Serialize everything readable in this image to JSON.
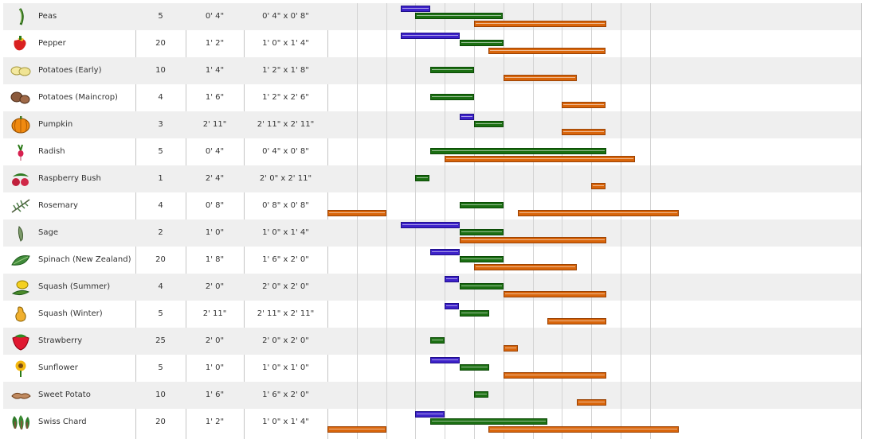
{
  "plants": [
    {
      "name": "Peas",
      "count": "5",
      "spacing": "0' 4\"",
      "row_spacing": "0' 4\" x 0' 8\"",
      "icon": "peas-icon",
      "sow": [
        [
          2.5,
          3.5
        ]
      ],
      "plant": [
        [
          3.0,
          6.0
        ]
      ],
      "harvest": [
        [
          5.0,
          9.5
        ]
      ]
    },
    {
      "name": "Pepper",
      "count": "20",
      "spacing": "1' 2\"",
      "row_spacing": "1' 0\" x 1' 4\"",
      "icon": "pepper-icon",
      "sow": [
        [
          2.5,
          4.5
        ]
      ],
      "plant": [
        [
          4.5,
          6.0
        ]
      ],
      "harvest": [
        [
          5.5,
          9.5
        ]
      ]
    },
    {
      "name": "Potatoes (Early)",
      "count": "10",
      "spacing": "1' 4\"",
      "row_spacing": "1' 2\" x 1' 8\"",
      "icon": "potato-early-icon",
      "sow": [],
      "plant": [
        [
          3.5,
          5.0
        ]
      ],
      "harvest": [
        [
          6.0,
          8.5
        ]
      ]
    },
    {
      "name": "Potatoes (Maincrop)",
      "count": "4",
      "spacing": "1' 6\"",
      "row_spacing": "1' 2\" x 2' 6\"",
      "icon": "potato-maincrop-icon",
      "sow": [],
      "plant": [
        [
          3.5,
          5.0
        ]
      ],
      "harvest": [
        [
          8.0,
          9.5
        ]
      ]
    },
    {
      "name": "Pumpkin",
      "count": "3",
      "spacing": "2' 11\"",
      "row_spacing": "2' 11\" x 2' 11\"",
      "icon": "pumpkin-icon",
      "sow": [
        [
          4.5,
          5.0
        ]
      ],
      "plant": [
        [
          5.0,
          6.0
        ]
      ],
      "harvest": [
        [
          8.0,
          9.5
        ]
      ]
    },
    {
      "name": "Radish",
      "count": "5",
      "spacing": "0' 4\"",
      "row_spacing": "0' 4\" x 0' 8\"",
      "icon": "radish-icon",
      "sow": [],
      "plant": [
        [
          3.5,
          9.5
        ]
      ],
      "harvest": [
        [
          4.0,
          10.5
        ]
      ]
    },
    {
      "name": "Raspberry Bush",
      "count": "1",
      "spacing": "2' 4\"",
      "row_spacing": "2' 0\" x 2' 11\"",
      "icon": "raspberry-icon",
      "sow": [],
      "plant": [
        [
          3.0,
          3.5
        ]
      ],
      "harvest": [
        [
          9.0,
          9.5
        ]
      ]
    },
    {
      "name": "Rosemary",
      "count": "4",
      "spacing": "0' 8\"",
      "row_spacing": "0' 8\" x 0' 8\"",
      "icon": "rosemary-icon",
      "sow": [],
      "plant": [
        [
          4.5,
          6.0
        ]
      ],
      "harvest": [
        [
          0.0,
          2.0
        ],
        [
          6.5,
          12.0
        ]
      ]
    },
    {
      "name": "Sage",
      "count": "2",
      "spacing": "1' 0\"",
      "row_spacing": "1' 0\" x 1' 4\"",
      "icon": "sage-icon",
      "sow": [
        [
          2.5,
          4.5
        ]
      ],
      "plant": [
        [
          4.5,
          6.0
        ]
      ],
      "harvest": [
        [
          4.5,
          9.5
        ]
      ]
    },
    {
      "name": "Spinach (New Zealand)",
      "count": "20",
      "spacing": "1' 8\"",
      "row_spacing": "1' 6\" x 2' 0\"",
      "icon": "spinach-icon",
      "sow": [
        [
          3.5,
          4.5
        ]
      ],
      "plant": [
        [
          4.5,
          6.0
        ]
      ],
      "harvest": [
        [
          5.0,
          8.5
        ]
      ]
    },
    {
      "name": "Squash (Summer)",
      "count": "4",
      "spacing": "2' 0\"",
      "row_spacing": "2' 0\" x 2' 0\"",
      "icon": "squash-summer-icon",
      "sow": [
        [
          4.0,
          4.5
        ]
      ],
      "plant": [
        [
          4.5,
          6.0
        ]
      ],
      "harvest": [
        [
          6.0,
          9.5
        ]
      ]
    },
    {
      "name": "Squash (Winter)",
      "count": "5",
      "spacing": "2' 11\"",
      "row_spacing": "2' 11\" x 2' 11\"",
      "icon": "squash-winter-icon",
      "sow": [
        [
          4.0,
          4.5
        ]
      ],
      "plant": [
        [
          4.5,
          5.5
        ]
      ],
      "harvest": [
        [
          7.5,
          9.5
        ]
      ]
    },
    {
      "name": "Strawberry",
      "count": "25",
      "spacing": "2' 0\"",
      "row_spacing": "2' 0\" x 2' 0\"",
      "icon": "strawberry-icon",
      "sow": [],
      "plant": [
        [
          3.5,
          4.0
        ]
      ],
      "harvest": [
        [
          6.0,
          6.5
        ]
      ]
    },
    {
      "name": "Sunflower",
      "count": "5",
      "spacing": "1' 0\"",
      "row_spacing": "1' 0\" x 1' 0\"",
      "icon": "sunflower-icon",
      "sow": [
        [
          3.5,
          4.5
        ]
      ],
      "plant": [
        [
          4.5,
          5.5
        ]
      ],
      "harvest": [
        [
          6.0,
          9.5
        ]
      ]
    },
    {
      "name": "Sweet Potato",
      "count": "10",
      "spacing": "1' 6\"",
      "row_spacing": "1' 6\" x 2' 0\"",
      "icon": "sweet-potato-icon",
      "sow": [],
      "plant": [
        [
          5.0,
          5.5
        ]
      ],
      "harvest": [
        [
          8.5,
          9.5
        ]
      ]
    },
    {
      "name": "Swiss Chard",
      "count": "20",
      "spacing": "1' 2\"",
      "row_spacing": "1' 0\" x 1' 4\"",
      "icon": "swiss-chard-icon",
      "sow": [
        [
          3.0,
          4.0
        ]
      ],
      "plant": [
        [
          3.5,
          7.5
        ]
      ],
      "harvest": [
        [
          0.0,
          2.0
        ],
        [
          5.5,
          12.0
        ]
      ]
    }
  ],
  "colors": {
    "sow": "#3d22c9",
    "plant": "#1b6f12",
    "harvest": "#d9650a",
    "row_alt": "#efefef"
  }
}
